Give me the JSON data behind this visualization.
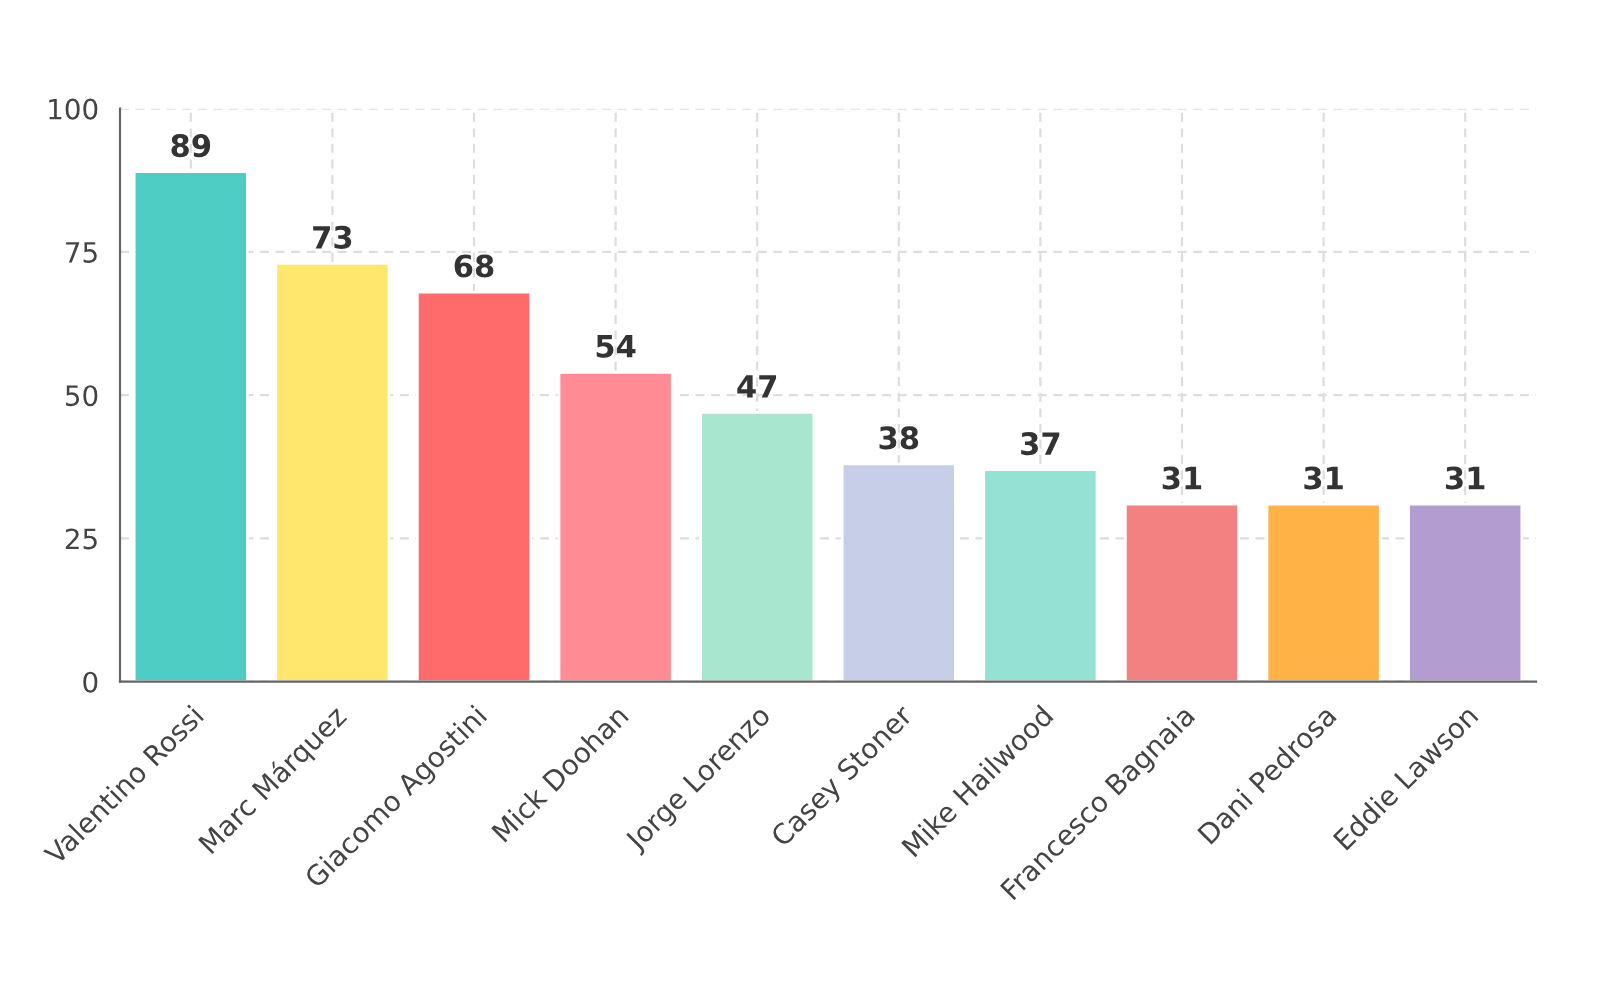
{
  "chart_data": {
    "type": "bar",
    "categories": [
      "Valentino Rossi",
      "Marc Márquez",
      "Giacomo Agostini",
      "Mick Doohan",
      "Jorge Lorenzo",
      "Casey Stoner",
      "Mike Hailwood",
      "Francesco Bagnaia",
      "Dani Pedrosa",
      "Eddie Lawson"
    ],
    "values": [
      89,
      73,
      68,
      54,
      47,
      38,
      37,
      31,
      31,
      31
    ],
    "colors": [
      "#4ecdc4",
      "#ffe66d",
      "#ff6b6b",
      "#ff8b94",
      "#a8e6cf",
      "#c7cee8",
      "#95e1d3",
      "#f38181",
      "#ffb347",
      "#b39cd0"
    ],
    "ylim": [
      0,
      100
    ],
    "yticks": [
      0,
      25,
      50,
      75,
      100
    ],
    "grid": true,
    "data_labels": true
  }
}
